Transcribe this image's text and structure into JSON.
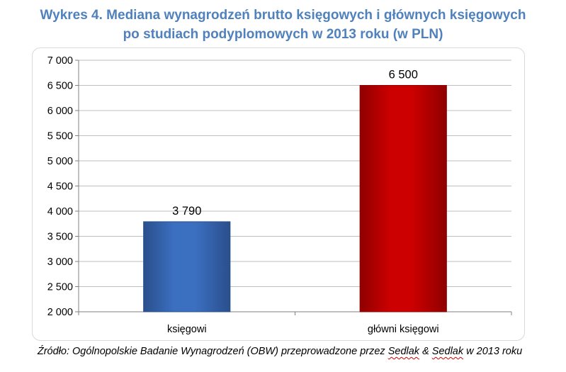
{
  "title": {
    "line1": "Wykres 4. Mediana wynagrodzeń brutto księgowych i głównych księgowych",
    "line2": "po studiach podyplomowych w 2013 roku (w PLN)"
  },
  "chart_data": {
    "type": "bar",
    "categories": [
      "księgowi",
      "główni księgowi"
    ],
    "values": [
      3790,
      6500
    ],
    "value_labels": [
      "3 790",
      "6 500"
    ],
    "ylim": [
      2000,
      7000
    ],
    "yticks": [
      2000,
      2500,
      3000,
      3500,
      4000,
      4500,
      5000,
      5500,
      6000,
      6500,
      7000
    ],
    "ytick_labels": [
      "2 000",
      "2 500",
      "3 000",
      "3 500",
      "4 000",
      "4 500",
      "5 000",
      "5 500",
      "6 000",
      "6 500",
      "7 000"
    ],
    "grid": true,
    "legend": "none",
    "bar_colors": [
      "#3b6fc0",
      "#cc0000"
    ],
    "bar_edge_colors": [
      "#2a4f8c",
      "#8f0000"
    ],
    "grid_color": "#bfbfbf"
  },
  "source": {
    "prefix": "Źródło: Ogólnopolskie Badanie Wynagrodzeń (OBW) przeprowadzone przez ",
    "word1": "Sedlak",
    "amp": " & ",
    "word2": "Sedlak",
    "suffix": " w 2013 roku"
  }
}
